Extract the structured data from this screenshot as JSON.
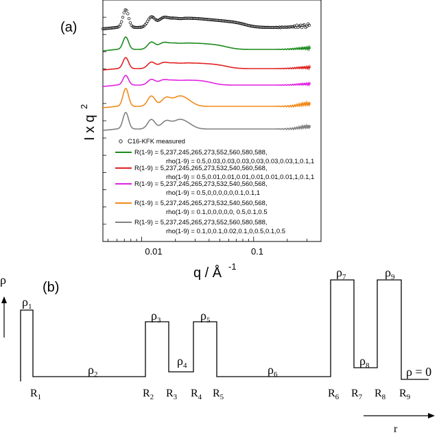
{
  "chart_data": [
    {
      "panel_label": "(a)",
      "type": "line",
      "xscale": "log",
      "xlim": [
        0.0045,
        0.4
      ],
      "x_ticks": [
        "0.01",
        "0.1"
      ],
      "xlabel": "q / Å",
      "xlabel_exp": "-1",
      "ylabel": "I x q",
      "ylabel_exp": "2",
      "yticks_labeled": false,
      "legend_position": "bottom-left",
      "series": [
        {
          "name": "C16-KFK measured",
          "color": "#000000",
          "marker": "open-circle",
          "peaks": [
            0.0072,
            0.0122,
            0.0155,
            0.019,
            0.024,
            0.03,
            0.038,
            0.05,
            0.07,
            0.3
          ]
        },
        {
          "name": "R(1-9) = 5,237,245,265,273,552,560,580,588,",
          "note": "rho(1-9) = 0.5,0.03,0.03,0.03,0.03,0.03,0.03,1,0.1,1",
          "color": "#1a8a1a",
          "peaks": [
            0.0072,
            0.0122,
            0.0155,
            0.019,
            0.024,
            0.03,
            0.038,
            0.05,
            0.3
          ]
        },
        {
          "name": "R(1-9) = 5,237,245,265,273,532,540,560,568,",
          "note": "rho(1-9) = 0.5,0.01,0.01,0.01,0.01,0.01,0.01,1,0.1,1",
          "color": "#e02020",
          "peaks": [
            0.0072,
            0.0122,
            0.0155,
            0.019,
            0.024,
            0.03,
            0.038,
            0.05,
            0.3
          ]
        },
        {
          "name": "R(1-9) = 5,237,245,265,273,532,540,560,568,",
          "note": "rho(1-9) = 0.5,0,0,0,0,0,0.1,0.1,1",
          "color": "#e020e0",
          "peaks": [
            0.0072,
            0.0122,
            0.0155,
            0.019,
            0.024,
            0.03,
            0.038,
            0.3
          ]
        },
        {
          "name": "R(1-9) = 5,237,245,265,273,532,540,560,568,",
          "note": "rho(1-9) = 0.1,0,0,0,0,0, 0.5,0.1,0.5",
          "color": "#f08a1a",
          "peaks": [
            0.0072,
            0.0122,
            0.0165,
            0.021,
            0.025,
            0.3
          ]
        },
        {
          "name": "R(1-9) = 5,237,245,265,273,552,560,580,588,",
          "note": "rho(1-9) = 0.1,0,0.1,0.02,0.1,0,0.5,0.1,0.5",
          "color": "#808080",
          "peaks": [
            0.0072,
            0.0122,
            0.0165,
            0.021,
            0.025,
            0.3
          ]
        }
      ]
    },
    {
      "panel_label": "(b)",
      "type": "step-profile",
      "ylabel": "ρ",
      "xlabel": "r",
      "radii": [
        "R1",
        "R2",
        "R3",
        "R4",
        "R5",
        "R6",
        "R7",
        "R8",
        "R9"
      ],
      "densities": [
        "ρ1",
        "ρ2",
        "ρ3",
        "ρ4",
        "ρ5",
        "ρ6",
        "ρ7",
        "ρ8",
        "ρ9"
      ],
      "final_label": "ρ = 0",
      "profile_levels": [
        0.5,
        0.03,
        0.3,
        0.05,
        0.3,
        0.03,
        1.0,
        0.08,
        1.0,
        0
      ]
    }
  ],
  "labels": {
    "panel_a": "(a)",
    "panel_b": "(b)",
    "rho_axis": "ρ",
    "r_axis": "r",
    "tick_001": "0.01",
    "tick_01": "0.1",
    "ylab_main": "I x q",
    "ylab_sup": "2",
    "xlab_main": "q / Å",
    "xlab_sup": "-1",
    "rho_zero": "ρ = 0",
    "legend_measured": "C16-KFK measured",
    "legend_green_1": "R(1-9) = 5,237,245,265,273,552,560,580,588,",
    "legend_green_2": "rho(1-9) = 0.5,0.03,0.03,0.03,0.03,0.03,0.03,1,0.1,1",
    "legend_red_1": "R(1-9) = 5,237,245,265,273,532,540,560,568,",
    "legend_red_2": "rho(1-9) = 0.5,0.01,0.01,0.01,0.01,0.01,0.01,1,0.1,1",
    "legend_magenta_1": "R(1-9) = 5,237,245,265,273,532,540,560,568,",
    "legend_magenta_2": "rho(1-9) = 0.5,0,0,0,0,0,0.1,0.1,1",
    "legend_orange_1": "R(1-9) = 5,237,245,265,273,532,540,560,568,",
    "legend_orange_2": "rho(1-9) = 0.1,0,0,0,0,0, 0.5,0.1,0.5",
    "legend_gray_1": "R(1-9) = 5,237,245,265,273,552,560,580,588,",
    "legend_gray_2": "rho(1-9) = 0.1,0,0.1,0.02,0.1,0,0.5,0.1,0.5"
  },
  "colors": {
    "measured": "#000000",
    "green": "#1a8a1a",
    "red": "#e02020",
    "magenta": "#e020e0",
    "orange": "#f08a1a",
    "gray": "#808080"
  }
}
